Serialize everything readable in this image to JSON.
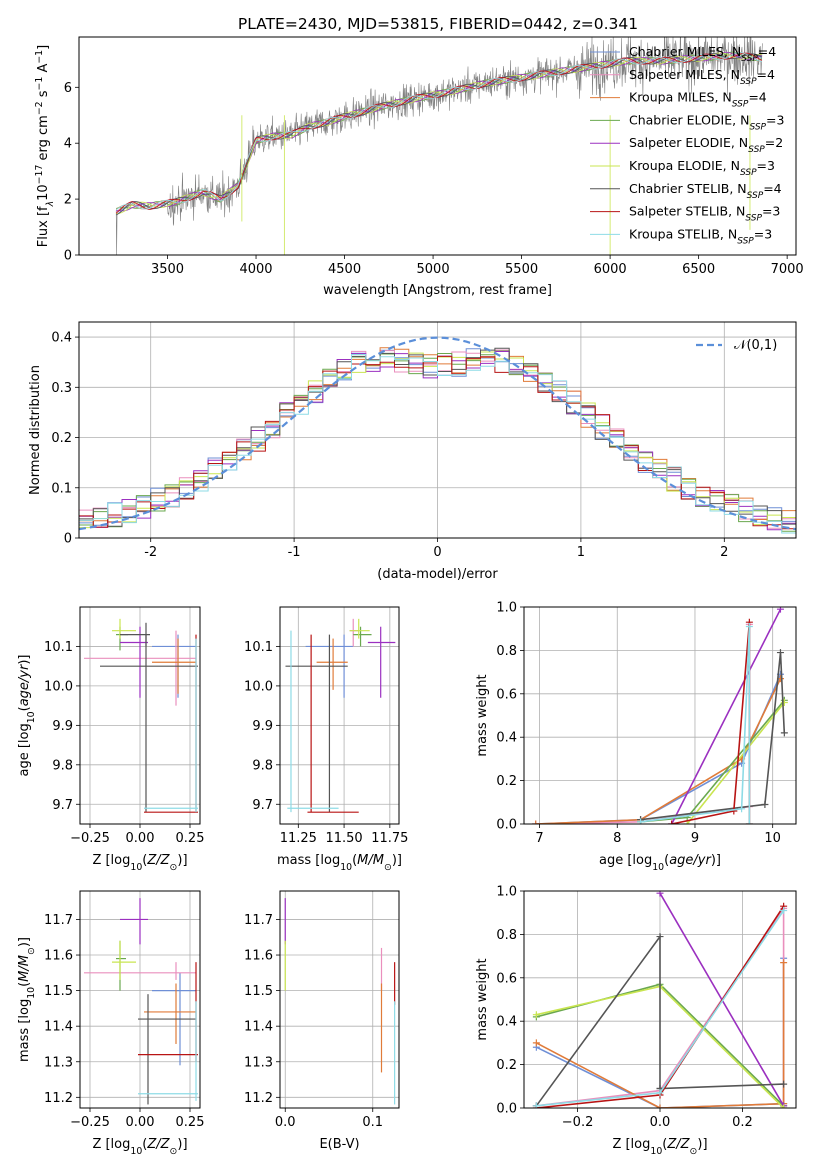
{
  "figure_title": "PLATE=2430, MJD=53815, FIBERID=0442, z=0.341",
  "models": [
    {
      "key": "CM",
      "label": "Chabrier MILES, N",
      "sub": "SSP",
      "n": "=4",
      "color": "#6f8fd6"
    },
    {
      "key": "SM",
      "label": "Salpeter MILES, N",
      "sub": "SSP",
      "n": "=4",
      "color": "#ea8fbd"
    },
    {
      "key": "KM",
      "label": "Kroupa MILES, N",
      "sub": "SSP",
      "n": "=4",
      "color": "#e07b39"
    },
    {
      "key": "CE",
      "label": "Chabrier ELODIE, N",
      "sub": "SSP",
      "n": "=3",
      "color": "#6aa84f"
    },
    {
      "key": "SE",
      "label": "Salpeter ELODIE, N",
      "sub": "SSP",
      "n": "=2",
      "color": "#9b30c0"
    },
    {
      "key": "KE",
      "label": "Kroupa ELODIE, N",
      "sub": "SSP",
      "n": "=3",
      "color": "#c9e550"
    },
    {
      "key": "CS",
      "label": "Chabrier STELIB, N",
      "sub": "SSP",
      "n": "=4",
      "color": "#555555"
    },
    {
      "key": "SS",
      "label": "Salpeter STELIB, N",
      "sub": "SSP",
      "n": "=3",
      "color": "#b81414"
    },
    {
      "key": "KS",
      "label": "Kroupa STELIB, N",
      "sub": "SSP",
      "n": "=3",
      "color": "#8edbe6"
    }
  ],
  "data_color": "#808080",
  "gauss_color": "#5b8fd9",
  "chart_data": [
    {
      "id": "spectrum",
      "type": "line",
      "xlabel": "wavelength [Angstrom, rest frame]",
      "ylabel": "Flux [f",
      "ylabel_parts": {
        "a": "Flux [f",
        "sub": "λ",
        "b": "10",
        "sup1": "−17",
        "c": " erg cm",
        "sup2": "−2",
        "d": " s",
        "sup3": "−1",
        "e": " A",
        "sup4": "−1",
        "f": "]"
      },
      "xlim": [
        3000,
        7050
      ],
      "ylim": [
        0,
        7.8
      ],
      "xticks": [
        3500,
        4000,
        4500,
        5000,
        5500,
        6000,
        6500,
        7000
      ],
      "yticks": [
        0,
        2,
        4,
        6
      ],
      "continuum": [
        [
          3210,
          1.55
        ],
        [
          3300,
          1.8
        ],
        [
          3400,
          1.75
        ],
        [
          3550,
          1.9
        ],
        [
          3700,
          2.25
        ],
        [
          3800,
          2.0
        ],
        [
          3900,
          2.5
        ],
        [
          4000,
          4.1
        ],
        [
          4100,
          4.25
        ],
        [
          4200,
          4.3
        ],
        [
          4300,
          4.6
        ],
        [
          4400,
          4.75
        ],
        [
          4500,
          4.95
        ],
        [
          4700,
          5.3
        ],
        [
          4900,
          5.6
        ],
        [
          5100,
          5.85
        ],
        [
          5300,
          6.15
        ],
        [
          5500,
          6.35
        ],
        [
          5700,
          6.55
        ],
        [
          5900,
          6.75
        ],
        [
          6100,
          6.95
        ],
        [
          6300,
          6.95
        ],
        [
          6500,
          7.05
        ],
        [
          6700,
          7.15
        ],
        [
          6850,
          7.05
        ]
      ]
    },
    {
      "id": "residuals",
      "type": "histogram",
      "xlabel": "(data-model)/error",
      "ylabel": "Normed distribution",
      "legend": "𝒩(0,1)",
      "legend_position": "top-right",
      "xlim": [
        -2.5,
        2.5
      ],
      "ylim": [
        0,
        0.43
      ],
      "xticks": [
        -2,
        -1,
        0,
        1,
        2
      ],
      "yticks": [
        0.0,
        0.1,
        0.2,
        0.3,
        0.4
      ],
      "bins": 50
    },
    {
      "id": "age-vs-Z",
      "type": "scatter",
      "xlabel": "Z [log",
      "xlabel_parts": {
        "a": "Z [log",
        "sub": "10",
        "b": "(Z/Z",
        "sub2": "⊙",
        "c": ")]"
      },
      "ylabel_parts": {
        "a": "age  [log",
        "sub": "10",
        "b": "(age/yr)]"
      },
      "xlim": [
        -0.3,
        0.3
      ],
      "ylim": [
        9.65,
        10.2
      ],
      "xticks": [
        -0.25,
        0.0,
        0.25
      ],
      "xticklabels": [
        "−0.25",
        "0.00",
        "0.25"
      ],
      "yticks": [
        9.7,
        9.8,
        9.9,
        10.0,
        10.1
      ],
      "yticklabels": [
        "9.7",
        "9.8",
        "9.9",
        "10.0",
        "10.1"
      ],
      "points": [
        {
          "m": "CM",
          "x": 0.19,
          "xe": [
            0.06,
            0.28
          ],
          "y": 10.1,
          "ye": [
            9.97,
            10.13
          ]
        },
        {
          "m": "SM",
          "x": 0.18,
          "xe": [
            -0.28,
            0.28
          ],
          "y": 10.07,
          "ye": [
            9.95,
            10.14
          ]
        },
        {
          "m": "KM",
          "x": 0.19,
          "xe": [
            0.06,
            0.28
          ],
          "y": 10.06,
          "ye": [
            9.98,
            10.12
          ]
        },
        {
          "m": "CE",
          "x": -0.1,
          "xe": [
            -0.12,
            -0.06
          ],
          "y": 10.13,
          "ye": [
            10.09,
            10.15
          ]
        },
        {
          "m": "SE",
          "x": 0.0,
          "xe": [
            -0.1,
            0.04
          ],
          "y": 10.11,
          "ye": [
            9.97,
            10.15
          ]
        },
        {
          "m": "KE",
          "x": -0.1,
          "xe": [
            -0.14,
            -0.02
          ],
          "y": 10.14,
          "ye": [
            10.12,
            10.17
          ]
        },
        {
          "m": "CS",
          "x": 0.03,
          "xe": [
            -0.2,
            0.29
          ],
          "y": 10.05,
          "ye": [
            9.68,
            10.13
          ]
        },
        {
          "m": "CS",
          "x": 0.03,
          "xe": [
            -0.1,
            0.05
          ],
          "y": 10.13,
          "ye": [
            10.1,
            10.16
          ]
        },
        {
          "m": "SS",
          "x": 0.28,
          "xe": [
            0.02,
            0.29
          ],
          "y": 9.68,
          "ye": [
            9.68,
            10.13
          ]
        },
        {
          "m": "KS",
          "x": 0.28,
          "xe": [
            0.02,
            0.29
          ],
          "y": 9.69,
          "ye": [
            9.68,
            10.12
          ]
        }
      ]
    },
    {
      "id": "age-vs-mass",
      "type": "scatter",
      "xlabel_parts": {
        "a": "mass [log",
        "sub": "10",
        "b": "(M/M",
        "sub2": "⊙",
        "c": ")]"
      },
      "xlim": [
        11.15,
        11.8
      ],
      "ylim": [
        9.65,
        10.2
      ],
      "xticks": [
        11.25,
        11.5,
        11.75
      ],
      "xticklabels": [
        "11.25",
        "11.50",
        "11.75"
      ],
      "yticks": [
        9.7,
        9.8,
        9.9,
        10.0,
        10.1
      ],
      "yticklabels": [
        "9.7",
        "9.8",
        "9.9",
        "10.0",
        "10.1"
      ],
      "points": [
        {
          "m": "CM",
          "x": 11.5,
          "xe": [
            11.29,
            11.55
          ],
          "y": 10.1,
          "ye": [
            9.97,
            10.13
          ]
        },
        {
          "m": "SM",
          "x": 11.55,
          "xe": [
            11.53,
            11.58
          ],
          "y": 10.14,
          "ye": [
            10.1,
            10.17
          ]
        },
        {
          "m": "KM",
          "x": 11.44,
          "xe": [
            11.35,
            11.52
          ],
          "y": 10.06,
          "ye": [
            9.99,
            10.12
          ]
        },
        {
          "m": "CE",
          "x": 11.59,
          "xe": [
            11.55,
            11.65
          ],
          "y": 10.13,
          "ye": [
            10.1,
            10.15
          ]
        },
        {
          "m": "SE",
          "x": 11.7,
          "xe": [
            11.63,
            11.78
          ],
          "y": 10.11,
          "ye": [
            9.97,
            10.15
          ]
        },
        {
          "m": "KE",
          "x": 11.58,
          "xe": [
            11.53,
            11.64
          ],
          "y": 10.14,
          "ye": [
            10.12,
            10.17
          ]
        },
        {
          "m": "CS",
          "x": 11.42,
          "xe": [
            11.18,
            11.52
          ],
          "y": 10.05,
          "ye": [
            9.68,
            10.13
          ]
        },
        {
          "m": "SS",
          "x": 11.32,
          "xe": [
            11.3,
            11.58
          ],
          "y": 9.68,
          "ye": [
            9.68,
            10.13
          ]
        },
        {
          "m": "KS",
          "x": 11.21,
          "xe": [
            11.19,
            11.47
          ],
          "y": 9.69,
          "ye": [
            9.68,
            10.14
          ]
        }
      ]
    },
    {
      "id": "weight-vs-age",
      "type": "line",
      "ylabel": "mass weight",
      "xlabel_parts": {
        "a": "age  [log",
        "sub": "10",
        "b": "(age/yr)]"
      },
      "xlim": [
        6.8,
        10.3
      ],
      "ylim": [
        0,
        1.0
      ],
      "xticks": [
        7,
        8,
        9,
        10
      ],
      "xticklabels": [
        "7",
        "8",
        "9",
        "10"
      ],
      "yticks": [
        0,
        0.2,
        0.4,
        0.6,
        0.8,
        1.0
      ],
      "yticklabels": [
        "0.0",
        "0.2",
        "0.4",
        "0.6",
        "0.8",
        "1.0"
      ],
      "series": [
        {
          "m": "CM",
          "x": [
            6.95,
            8.3,
            9.6,
            10.1
          ],
          "y": [
            0.0,
            0.02,
            0.28,
            0.69
          ]
        },
        {
          "m": "SM",
          "x": [
            6.95,
            8.3,
            9.7,
            9.7
          ],
          "y": [
            0.0,
            0.01,
            0.08,
            0.92
          ]
        },
        {
          "m": "KM",
          "x": [
            6.95,
            8.3,
            9.6,
            10.1
          ],
          "y": [
            0.0,
            0.02,
            0.3,
            0.67
          ]
        },
        {
          "m": "CE",
          "x": [
            8.3,
            8.9,
            10.15
          ],
          "y": [
            0.01,
            0.03,
            0.57
          ]
        },
        {
          "m": "SE",
          "x": [
            8.7,
            10.1
          ],
          "y": [
            0.0,
            0.99
          ]
        },
        {
          "m": "KE",
          "x": [
            8.9,
            10.15
          ],
          "y": [
            0.0,
            0.56
          ]
        },
        {
          "m": "CS",
          "x": [
            8.3,
            9.9,
            10.1,
            10.15
          ],
          "y": [
            0.02,
            0.09,
            0.79,
            0.42
          ]
        },
        {
          "m": "SS",
          "x": [
            8.7,
            9.5,
            9.7,
            9.7
          ],
          "y": [
            0.0,
            0.06,
            0.93,
            0.0
          ]
        },
        {
          "m": "KS",
          "x": [
            8.3,
            9.6,
            9.7,
            9.7
          ],
          "y": [
            0.01,
            0.07,
            0.91,
            0.0
          ]
        }
      ]
    },
    {
      "id": "mass-vs-Z",
      "type": "scatter",
      "xlabel_parts": {
        "a": "Z [log",
        "sub": "10",
        "b": "(Z/Z",
        "sub2": "⊙",
        "c": ")]"
      },
      "ylabel_parts": {
        "a": "mass [log",
        "sub": "10",
        "b": "(M/M",
        "sub2": "⊙",
        "c": ")]"
      },
      "xlim": [
        -0.3,
        0.3
      ],
      "ylim": [
        11.17,
        11.78
      ],
      "xticks": [
        -0.25,
        0.0,
        0.25
      ],
      "xticklabels": [
        "−0.25",
        "0.00",
        "0.25"
      ],
      "yticks": [
        11.2,
        11.3,
        11.4,
        11.5,
        11.6,
        11.7
      ],
      "yticklabels": [
        "11.2",
        "11.3",
        "11.4",
        "11.5",
        "11.6",
        "11.7"
      ],
      "points": [
        {
          "m": "CM",
          "x": 0.2,
          "xe": [
            0.06,
            0.28
          ],
          "y": 11.5,
          "ye": [
            11.29,
            11.55
          ]
        },
        {
          "m": "SM",
          "x": 0.18,
          "xe": [
            -0.28,
            0.28
          ],
          "y": 11.55,
          "ye": [
            11.53,
            11.58
          ]
        },
        {
          "m": "KM",
          "x": 0.18,
          "xe": [
            0.02,
            0.28
          ],
          "y": 11.44,
          "ye": [
            11.35,
            11.52
          ]
        },
        {
          "m": "CE",
          "x": -0.1,
          "xe": [
            -0.12,
            -0.07
          ],
          "y": 11.59,
          "ye": [
            11.5,
            11.64
          ]
        },
        {
          "m": "SE",
          "x": 0.0,
          "xe": [
            -0.1,
            0.04
          ],
          "y": 11.7,
          "ye": [
            11.63,
            11.76
          ]
        },
        {
          "m": "KE",
          "x": -0.1,
          "xe": [
            -0.14,
            -0.02
          ],
          "y": 11.58,
          "ye": [
            11.53,
            11.64
          ]
        },
        {
          "m": "CS",
          "x": 0.04,
          "xe": [
            -0.01,
            0.28
          ],
          "y": 11.42,
          "ye": [
            11.18,
            11.49
          ]
        },
        {
          "m": "SS",
          "x": 0.28,
          "xe": [
            -0.01,
            0.29
          ],
          "y": 11.32,
          "ye": [
            11.3,
            11.58
          ]
        },
        {
          "m": "KS",
          "x": 0.28,
          "xe": [
            -0.01,
            0.29
          ],
          "y": 11.21,
          "ye": [
            11.19,
            11.47
          ]
        }
      ]
    },
    {
      "id": "mass-vs-ebv",
      "type": "scatter",
      "xlabel": "E(B-V)",
      "xlim": [
        -0.006,
        0.13
      ],
      "ylim": [
        11.17,
        11.78
      ],
      "xticks": [
        0.0,
        0.1
      ],
      "xticklabels": [
        "0.0",
        "0.1"
      ],
      "yticks": [
        11.2,
        11.3,
        11.4,
        11.5,
        11.6,
        11.7
      ],
      "yticklabels": [
        "11.2",
        "11.3",
        "11.4",
        "11.5",
        "11.6",
        "11.7"
      ],
      "points": [
        {
          "m": "SE",
          "x": 0.0,
          "y": 11.7,
          "ye": [
            11.63,
            11.76
          ]
        },
        {
          "m": "KE",
          "x": 0.0,
          "y": 11.58,
          "ye": [
            11.5,
            11.64
          ]
        },
        {
          "m": "SM",
          "x": 0.11,
          "y": 11.55,
          "ye": [
            11.5,
            11.62
          ]
        },
        {
          "m": "KM",
          "x": 0.11,
          "y": 11.42,
          "ye": [
            11.27,
            11.52
          ]
        },
        {
          "m": "SS",
          "x": 0.125,
          "y": 11.52,
          "ye": [
            11.46,
            11.58
          ]
        },
        {
          "m": "KS",
          "x": 0.125,
          "y": 11.32,
          "ye": [
            11.18,
            11.47
          ]
        }
      ]
    },
    {
      "id": "weight-vs-Z",
      "type": "line",
      "ylabel": "mass weight",
      "xlabel_parts": {
        "a": "Z [log",
        "sub": "10",
        "b": "(Z/Z",
        "sub2": "⊙",
        "c": ")]"
      },
      "xlim": [
        -0.33,
        0.33
      ],
      "ylim": [
        0,
        1.0
      ],
      "xticks": [
        -0.2,
        0.0,
        0.2
      ],
      "xticklabels": [
        "−0.2",
        "0.0",
        "0.2"
      ],
      "yticks": [
        0,
        0.2,
        0.4,
        0.6,
        0.8,
        1.0
      ],
      "yticklabels": [
        "0.0",
        "0.2",
        "0.4",
        "0.6",
        "0.8",
        "1.0"
      ],
      "series": [
        {
          "m": "CM",
          "x": [
            -0.3,
            0.0,
            0.3,
            0.3
          ],
          "y": [
            0.28,
            0.0,
            0.02,
            0.69
          ]
        },
        {
          "m": "SM",
          "x": [
            -0.3,
            0.0,
            0.3,
            0.3
          ],
          "y": [
            0.01,
            0.08,
            0.92,
            0.0
          ]
        },
        {
          "m": "KM",
          "x": [
            -0.3,
            0.0,
            0.3,
            0.3
          ],
          "y": [
            0.3,
            0.0,
            0.02,
            0.67
          ]
        },
        {
          "m": "CE",
          "x": [
            -0.3,
            0.0,
            0.3
          ],
          "y": [
            0.42,
            0.57,
            0.01
          ]
        },
        {
          "m": "SE",
          "x": [
            0.0,
            0.3
          ],
          "y": [
            0.99,
            0.01
          ]
        },
        {
          "m": "KE",
          "x": [
            -0.3,
            0.0,
            0.3
          ],
          "y": [
            0.43,
            0.56,
            0.0
          ]
        },
        {
          "m": "CS",
          "x": [
            -0.3,
            0.0,
            0.0,
            0.0,
            0.3
          ],
          "y": [
            0.01,
            0.79,
            0.09,
            0.09,
            0.11
          ]
        },
        {
          "m": "SS",
          "x": [
            -0.3,
            0.0,
            0.3
          ],
          "y": [
            0.0,
            0.06,
            0.93
          ]
        },
        {
          "m": "KS",
          "x": [
            -0.3,
            0.0,
            0.3
          ],
          "y": [
            0.01,
            0.07,
            0.91
          ]
        }
      ]
    }
  ]
}
